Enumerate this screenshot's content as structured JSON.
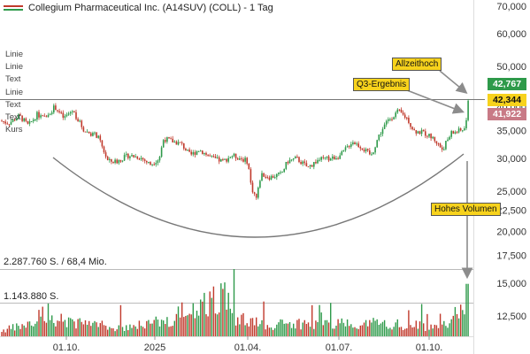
{
  "window": {
    "title": "Collegium Pharmaceutical Inc. (A14SUV) (COLL) - 1 Tag"
  },
  "legend": {
    "side_labels": [
      "Linie",
      "Linie",
      "Text",
      "Linie",
      "Text",
      "Text",
      "Kurs"
    ]
  },
  "colors": {
    "up": "#2e9a4a",
    "down": "#c0392b",
    "ask_tag": "#2e9a4a",
    "last_tag": "#f7d21c",
    "bid_tag": "#c87a86",
    "callout": "#f7d21c",
    "arc": "#777777",
    "arrow": "#8c8c8c"
  },
  "volume": {
    "label_top": "2.287.760 S. / 68,4 Mio.",
    "label_mid": "1.143.880 S."
  },
  "tags": {
    "ask": "42,767",
    "last": "42,344",
    "bid": "41,922"
  },
  "callouts": {
    "ath": "Allzeithoch",
    "q3": "Q3-Ergebnis",
    "volume": "Hohes Volumen"
  },
  "chart_data": {
    "type": "candlestick",
    "title": "Collegium Pharmaceutical Inc. (A14SUV) (COLL) - 1 Tag",
    "x_tick_labels": [
      "01.10.",
      "2025",
      "01.04.",
      "01.07.",
      "01.10."
    ],
    "y_tick_labels": [
      "70,000",
      "60,000",
      "50,000",
      "45,000",
      "40,000",
      "35,000",
      "30,000",
      "25,000",
      "22,500",
      "20,000",
      "17,500",
      "15,000",
      "12,500"
    ],
    "y_scale": "log",
    "ylim": [
      11.6,
      71
    ],
    "horizontal_line": 40.7,
    "last_value": 42.344,
    "volume_max": 2287760,
    "volume_mid": 1143880,
    "price_anchors": [
      [
        0,
        37.0
      ],
      [
        10,
        36.5
      ],
      [
        22,
        38.0
      ],
      [
        32,
        36.0
      ],
      [
        42,
        38.3
      ],
      [
        50,
        37.5
      ],
      [
        62,
        40.0
      ],
      [
        72,
        37.5
      ],
      [
        82,
        39.2
      ],
      [
        95,
        35.0
      ],
      [
        110,
        34.0
      ],
      [
        122,
        29.5
      ],
      [
        132,
        29.5
      ],
      [
        145,
        30.5
      ],
      [
        158,
        30.2
      ],
      [
        170,
        29.0
      ],
      [
        180,
        30.0
      ],
      [
        185,
        33.5
      ],
      [
        195,
        33.0
      ],
      [
        205,
        32.5
      ],
      [
        215,
        30.5
      ],
      [
        225,
        31.5
      ],
      [
        240,
        30.0
      ],
      [
        252,
        29.5
      ],
      [
        262,
        30.5
      ],
      [
        272,
        30.0
      ],
      [
        280,
        29.5
      ],
      [
        284,
        25.5
      ],
      [
        290,
        24.0
      ],
      [
        295,
        27.5
      ],
      [
        305,
        27.0
      ],
      [
        318,
        27.5
      ],
      [
        325,
        29.5
      ],
      [
        335,
        30.0
      ],
      [
        348,
        28.5
      ],
      [
        360,
        29.8
      ],
      [
        375,
        30.0
      ],
      [
        385,
        30.5
      ],
      [
        398,
        33.0
      ],
      [
        408,
        32.0
      ],
      [
        415,
        31.0
      ],
      [
        420,
        30.5
      ],
      [
        428,
        34.0
      ],
      [
        438,
        37.0
      ],
      [
        450,
        39.0
      ],
      [
        460,
        37.5
      ],
      [
        468,
        35.0
      ],
      [
        480,
        34.5
      ],
      [
        490,
        33.5
      ],
      [
        500,
        31.5
      ],
      [
        510,
        34.5
      ],
      [
        520,
        35.0
      ],
      [
        526,
        35.5
      ],
      [
        530,
        42.3
      ]
    ],
    "volume_profile": [
      [
        0,
        0.12
      ],
      [
        60,
        0.38
      ],
      [
        130,
        0.2
      ],
      [
        182,
        0.32
      ],
      [
        265,
        1.0
      ],
      [
        266,
        0.4
      ],
      [
        300,
        0.25
      ],
      [
        330,
        0.28
      ],
      [
        420,
        0.3
      ],
      [
        500,
        0.2
      ],
      [
        528,
        0.78
      ],
      [
        530,
        0.55
      ]
    ]
  }
}
